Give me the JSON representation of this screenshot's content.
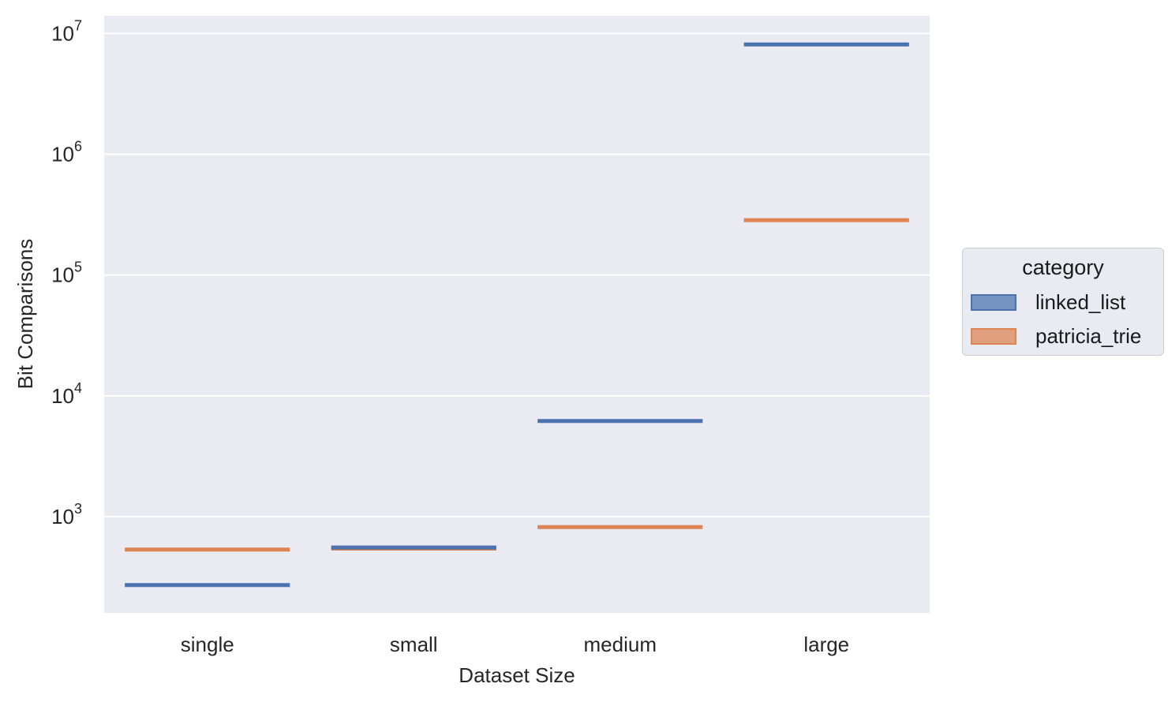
{
  "colors": {
    "background": "#ffffff",
    "plot_background": "#eaeaf2",
    "grid": "#ffffff",
    "linked_list": "#4c72b0",
    "patricia_trie": "#dd8452"
  },
  "chart_data": {
    "type": "bar",
    "title": "",
    "xlabel": "Dataset Size",
    "ylabel": "Bit Comparisons",
    "yscale": "log",
    "ylim": [
      160,
      14000000
    ],
    "grid": true,
    "categories": [
      "single",
      "small",
      "medium",
      "large"
    ],
    "yticks": [
      {
        "value": 1000,
        "base": "10",
        "exp": "3"
      },
      {
        "value": 10000,
        "base": "10",
        "exp": "4"
      },
      {
        "value": 100000,
        "base": "10",
        "exp": "5"
      },
      {
        "value": 1000000,
        "base": "10",
        "exp": "6"
      },
      {
        "value": 10000000,
        "base": "10",
        "exp": "7"
      }
    ],
    "legend": {
      "title": "category",
      "position": "right"
    },
    "series": [
      {
        "name": "linked_list",
        "values": [
          272,
          556,
          6200,
          8100000
        ]
      },
      {
        "name": "patricia_trie",
        "values": [
          535,
          545,
          820,
          285000
        ]
      }
    ]
  }
}
